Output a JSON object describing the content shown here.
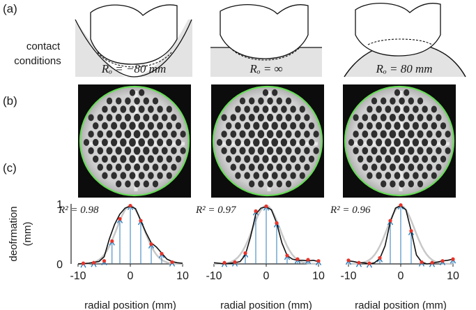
{
  "panels": {
    "a": "(a)",
    "b": "(b)",
    "c": "(c)"
  },
  "row_a": {
    "side_label": [
      "contact",
      "conditions"
    ],
    "captions": [
      "Rₒ = −80 mm",
      "Rₒ = ∞",
      "Rₒ = 80 mm"
    ]
  },
  "colors": {
    "fill": "#e3e3e3",
    "ring": "#66dd55",
    "curve": "#111111",
    "stems": "#2b7bb9",
    "points": "#e8332a",
    "fit": "#c8c8c8"
  },
  "chart_data": [
    {
      "type": "line",
      "r2": "R² = 0.98",
      "xlabel": "radial position (mm)",
      "ylabel": "deofrmation\n(mm)",
      "xlim": [
        -10,
        10
      ],
      "ylim": [
        0,
        1
      ],
      "xticks": [
        "-10",
        "0",
        "10"
      ],
      "yticks": [
        "0",
        "1"
      ],
      "curve_x": [
        -10,
        -8,
        -6,
        -5,
        -4,
        -3,
        -2,
        -1,
        0,
        1,
        2,
        3,
        4,
        5,
        6,
        7,
        8,
        9,
        10
      ],
      "curve_y": [
        0.0,
        0.01,
        0.04,
        0.12,
        0.42,
        0.66,
        0.83,
        0.93,
        0.96,
        0.92,
        0.72,
        0.52,
        0.35,
        0.28,
        0.18,
        0.08,
        0.04,
        0.02,
        0.01
      ],
      "points_x": [
        -9,
        -7,
        -5,
        -3.5,
        -2,
        0,
        2,
        4,
        6,
        8
      ],
      "points_y": [
        0.01,
        0.02,
        0.05,
        0.38,
        0.75,
        0.97,
        0.72,
        0.33,
        0.17,
        0.03
      ]
    },
    {
      "type": "line",
      "r2": "R² = 0.97",
      "xlabel": "radial position (mm)",
      "ylabel": "",
      "xlim": [
        -10,
        10
      ],
      "ylim": [
        0,
        1
      ],
      "xticks": [
        "-10",
        "0",
        "10"
      ],
      "yticks": [],
      "curve_x": [
        -10,
        -9,
        -8,
        -7,
        -6,
        -5,
        -4,
        -3,
        -2,
        -1,
        0,
        1,
        2,
        3,
        4,
        5,
        6,
        7,
        8,
        9,
        10
      ],
      "curve_y": [
        0.02,
        0.01,
        0.0,
        0.01,
        0.02,
        0.04,
        0.15,
        0.45,
        0.83,
        0.93,
        0.95,
        0.9,
        0.68,
        0.35,
        0.14,
        0.08,
        0.06,
        0.06,
        0.05,
        0.06,
        0.04
      ],
      "points_x": [
        -8,
        -6,
        -4,
        -2,
        0,
        2,
        4,
        6,
        8,
        10
      ],
      "points_y": [
        0.02,
        0.03,
        0.18,
        0.88,
        0.96,
        0.68,
        0.14,
        0.08,
        0.07,
        0.05
      ]
    },
    {
      "type": "line",
      "r2": "R² = 0.96",
      "xlabel": "radial position (mm)",
      "ylabel": "",
      "xlim": [
        -10,
        10
      ],
      "ylim": [
        0,
        1
      ],
      "xticks": [
        "-10",
        "0",
        "10"
      ],
      "yticks": [],
      "curve_x": [
        -10,
        -9,
        -8,
        -7,
        -6,
        -5,
        -4,
        -3,
        -2,
        -1,
        0,
        1,
        2,
        3,
        4,
        5,
        6,
        7,
        8,
        9,
        10
      ],
      "curve_y": [
        0.05,
        0.04,
        0.02,
        0.02,
        0.0,
        0.02,
        0.09,
        0.3,
        0.7,
        0.93,
        0.97,
        0.9,
        0.55,
        0.15,
        0.03,
        0.0,
        0.01,
        0.03,
        0.05,
        0.06,
        0.08
      ],
      "points_x": [
        -10,
        -8,
        -6,
        -4,
        -2,
        0,
        2,
        4,
        6,
        8,
        10
      ],
      "points_y": [
        0.06,
        0.02,
        0.01,
        0.1,
        0.72,
        0.98,
        0.55,
        0.03,
        0.02,
        0.05,
        0.08
      ]
    }
  ]
}
